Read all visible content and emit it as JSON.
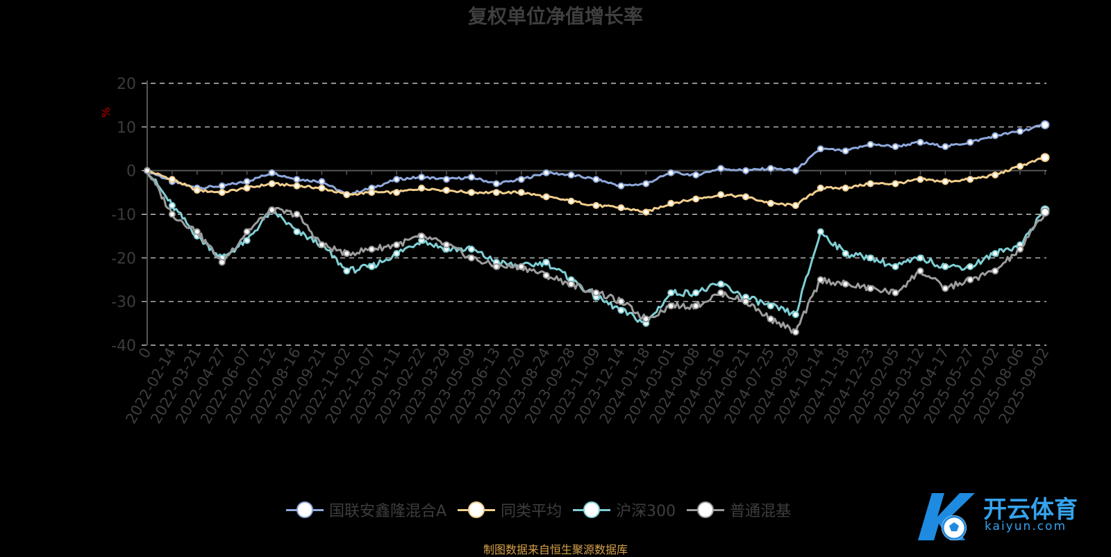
{
  "title": "复权单位净值增长率",
  "source_note": "制图数据来自恒生聚源数据库",
  "logo": {
    "text": "开云体育",
    "url": "kaiyun.com",
    "mark": "K"
  },
  "chart_data": {
    "type": "line",
    "title": "复权单位净值增长率",
    "ylabel": "%",
    "ylim": [
      -40,
      20
    ],
    "yticks": [
      20,
      10,
      0,
      -10,
      -20,
      -30,
      -40
    ],
    "grid": true,
    "legend_position": "bottom",
    "categories": [
      "0",
      "2022-02-14",
      "2022-03-21",
      "2022-04-27",
      "2022-06-07",
      "2022-07-12",
      "2022-08-16",
      "2022-09-21",
      "2022-11-02",
      "2022-12-07",
      "2023-01-11",
      "2023-02-22",
      "2023-03-29",
      "2023-05-09",
      "2023-06-13",
      "2023-07-20",
      "2023-08-24",
      "2023-09-28",
      "2023-11-09",
      "2023-12-14",
      "2024-01-18",
      "2024-03-01",
      "2024-04-08",
      "2024-05-16",
      "2024-06-21",
      "2024-07-25",
      "2024-08-29",
      "2024-10-14",
      "2024-11-18",
      "2024-12-23",
      "2025-02-05",
      "2025-03-12",
      "2025-04-17",
      "2025-05-27",
      "2025-07-02",
      "2025-08-06",
      "2025-09-02"
    ],
    "series": [
      {
        "name": "国联安鑫隆混合A",
        "color": "#8fa9dc",
        "values": [
          0,
          -2.5,
          -4,
          -3.5,
          -2.5,
          -0.5,
          -2,
          -2.5,
          -5.5,
          -4,
          -2,
          -1.5,
          -2,
          -1.5,
          -3,
          -2,
          -0.5,
          -1,
          -2,
          -3.5,
          -3,
          -0.5,
          -1,
          0.5,
          0,
          0.5,
          0,
          5,
          4.5,
          6,
          5.5,
          6.5,
          5.5,
          6.5,
          8,
          9,
          10.5
        ]
      },
      {
        "name": "同类平均",
        "color": "#f2cf8e",
        "values": [
          0,
          -2,
          -4.5,
          -5,
          -4,
          -3,
          -3.5,
          -4,
          -5.5,
          -5,
          -5,
          -4,
          -4.5,
          -5,
          -5,
          -5,
          -6,
          -7,
          -8,
          -8.5,
          -9.5,
          -7.5,
          -6.5,
          -5.5,
          -6,
          -7.5,
          -8,
          -4,
          -4,
          -3,
          -3,
          -2,
          -2.5,
          -2,
          -1,
          1,
          3
        ]
      },
      {
        "name": "沪深300",
        "color": "#7fcfd4",
        "values": [
          0,
          -8,
          -15,
          -20,
          -16,
          -9,
          -14,
          -17,
          -23,
          -22,
          -19,
          -16,
          -18,
          -18,
          -21,
          -22,
          -21,
          -25,
          -29,
          -32,
          -35,
          -28,
          -28,
          -26,
          -29,
          -31,
          -33,
          -14,
          -19,
          -20,
          -22,
          -20,
          -22,
          -22,
          -19,
          -17,
          -9
        ]
      },
      {
        "name": "普通混基",
        "color": "#9c9c9c",
        "values": [
          0,
          -10,
          -14,
          -21,
          -14,
          -9,
          -10,
          -17,
          -19,
          -18,
          -17,
          -15,
          -17,
          -20,
          -22,
          -22,
          -24,
          -26,
          -28,
          -30,
          -34,
          -31,
          -31,
          -28,
          -30,
          -34,
          -37,
          -25,
          -26,
          -27,
          -28,
          -23,
          -27,
          -25,
          -23,
          -18,
          -9.5
        ]
      }
    ]
  }
}
